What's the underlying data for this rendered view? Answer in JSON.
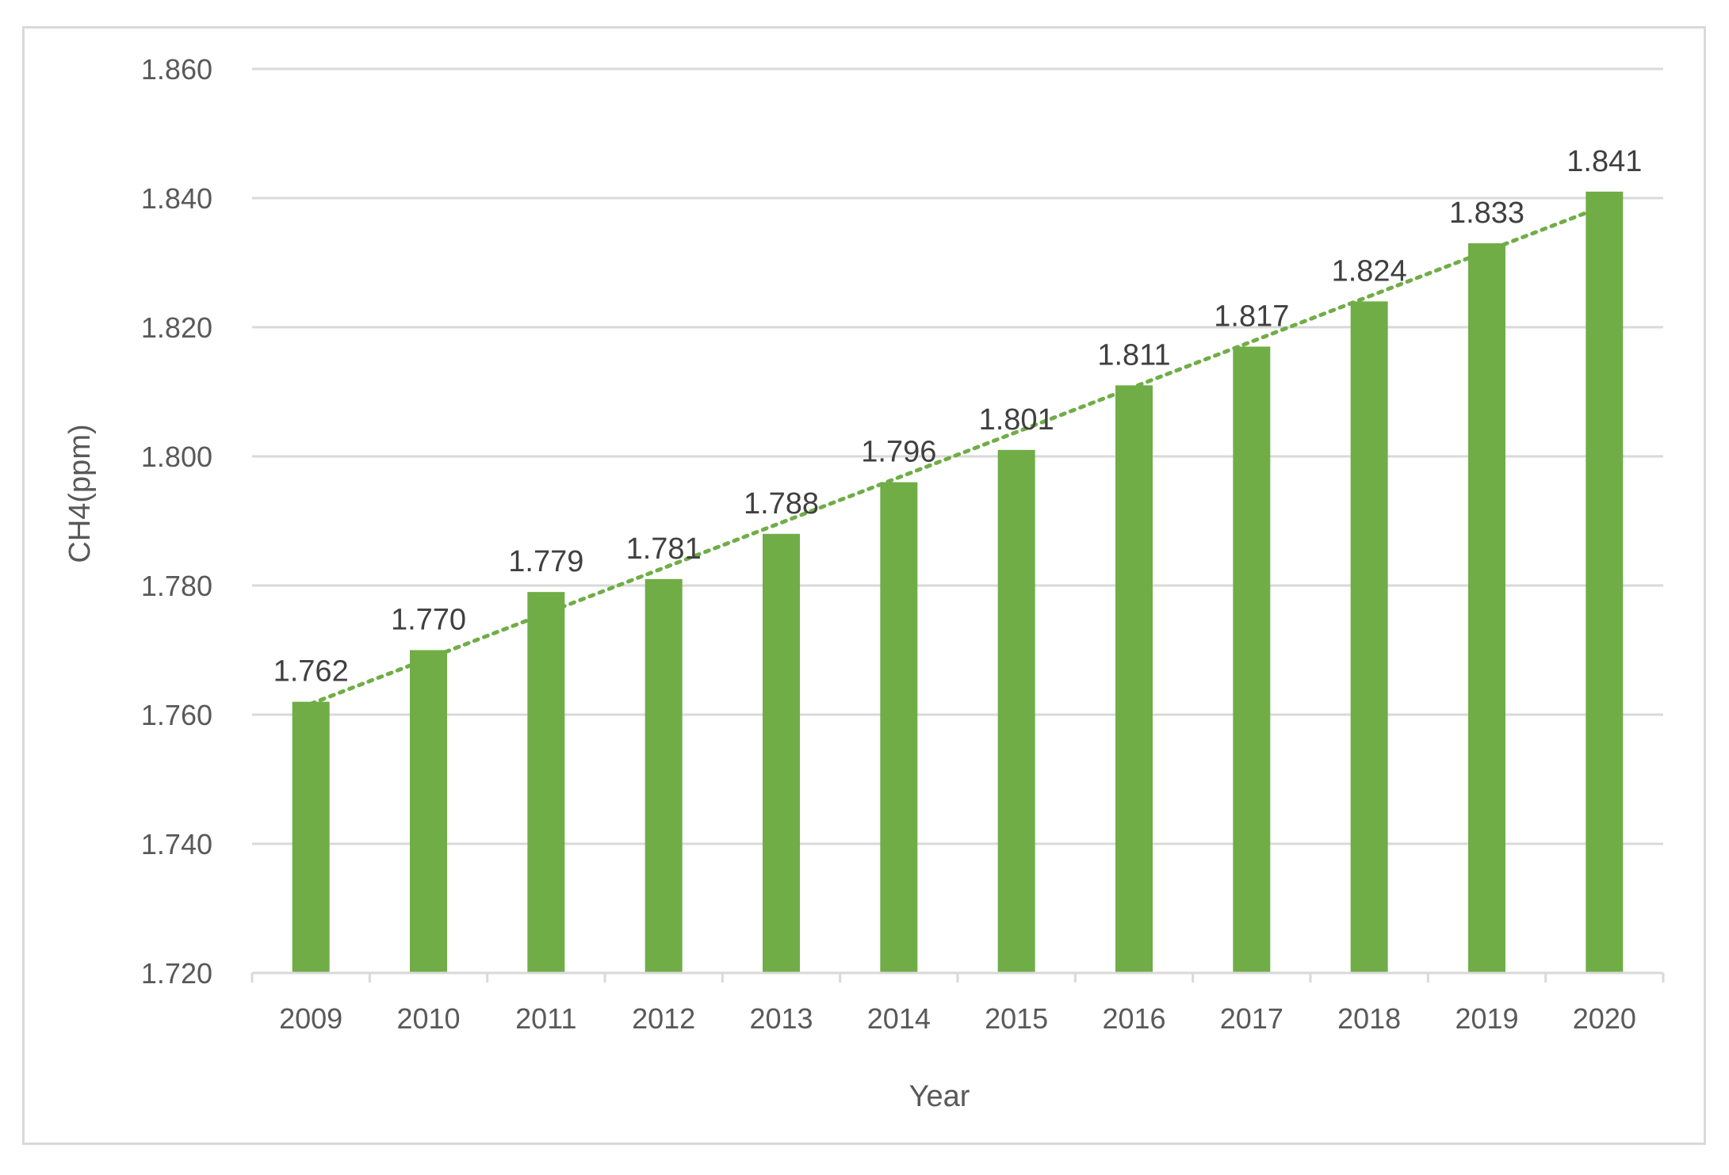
{
  "chart_data": {
    "type": "bar",
    "title": "",
    "xlabel": "Year",
    "ylabel": "CH4(ppm)",
    "categories": [
      "2009",
      "2010",
      "2011",
      "2012",
      "2013",
      "2014",
      "2015",
      "2016",
      "2017",
      "2018",
      "2019",
      "2020"
    ],
    "values": [
      1.762,
      1.77,
      1.779,
      1.781,
      1.788,
      1.796,
      1.801,
      1.811,
      1.817,
      1.824,
      1.833,
      1.841
    ],
    "data_labels": [
      "1.762",
      "1.770",
      "1.779",
      "1.781",
      "1.788",
      "1.796",
      "1.801",
      "1.811",
      "1.817",
      "1.824",
      "1.833",
      "1.841"
    ],
    "ylim": [
      1.72,
      1.86
    ],
    "yticks": [
      1.72,
      1.74,
      1.76,
      1.78,
      1.8,
      1.82,
      1.84,
      1.86
    ],
    "ytick_labels": [
      "1.720",
      "1.740",
      "1.760",
      "1.780",
      "1.800",
      "1.820",
      "1.840",
      "1.860"
    ],
    "grid": true,
    "legend": "none",
    "trendline": {
      "type": "linear",
      "style": "dotted"
    },
    "colors": {
      "bar": "#70ad47",
      "trendline": "#70ad47",
      "grid": "#d9d9d9",
      "axis": "#d9d9d9",
      "text": "#595959"
    }
  }
}
